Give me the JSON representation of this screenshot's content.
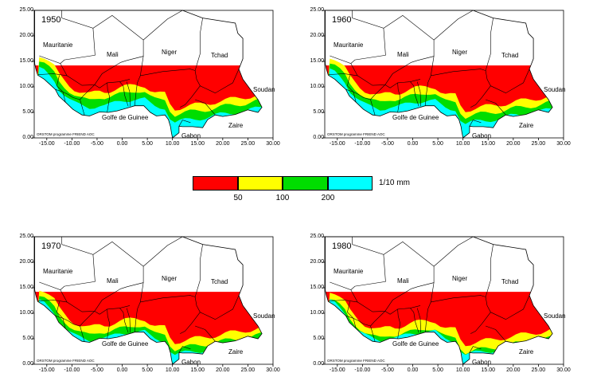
{
  "colors": {
    "red": "#ff0000",
    "yellow": "#ffff00",
    "green": "#00dd00",
    "cyan": "#00ffff",
    "sea": "#ffffff",
    "border": "#000000"
  },
  "map_labels": {
    "mauritanie": "Mauritanie",
    "mali": "Mali",
    "niger": "Niger",
    "tchad": "Tchad",
    "soudan": "Soudan",
    "golfe": "Golfe de Guinee",
    "zaire": "Zaire",
    "gabon": "Gabon",
    "credit": "ORSTOM programme FRIEND AOC"
  },
  "axis": {
    "y_ticks": [
      "25.00",
      "20.00",
      "15.00",
      "10.00",
      "5.00",
      "0.00"
    ],
    "x_ticks": [
      "-15.00",
      "-10.00",
      "-5.00",
      "0.00",
      "5.00",
      "10.00",
      "15.00",
      "20.00",
      "25.00",
      "30.00"
    ]
  },
  "panels": [
    {
      "year": "1950",
      "yellow_shift": 0.0,
      "green_shift": 0.0,
      "cyan_shift": 0.0
    },
    {
      "year": "1960",
      "yellow_shift": 0.3,
      "green_shift": 0.4,
      "cyan_shift": 0.3
    },
    {
      "year": "1970",
      "yellow_shift": 1.4,
      "green_shift": 1.6,
      "cyan_shift": 1.2
    },
    {
      "year": "1980",
      "yellow_shift": 1.8,
      "green_shift": 2.2,
      "cyan_shift": 2.0
    }
  ],
  "legend": {
    "classes": [
      "red",
      "yellow",
      "green",
      "cyan"
    ],
    "ticks": [
      "50",
      "100",
      "200"
    ],
    "unit": "1/10 mm"
  }
}
